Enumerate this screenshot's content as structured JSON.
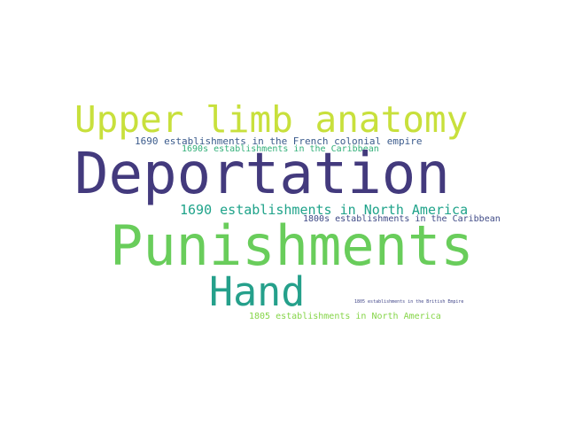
{
  "words": [
    {
      "text": "Upper limb anatomy",
      "color": "#c8e03c"
    },
    {
      "text": "1690 establishments in the French colonial empire",
      "color": "#3b5b8c"
    },
    {
      "text": "1690s establishments in the Caribbean",
      "color": "#33b07a"
    },
    {
      "text": "Deportation",
      "color": "#433a7d"
    },
    {
      "text": "1690 establishments in North America",
      "color": "#1fa38a"
    },
    {
      "text": "1800s establishments in the Caribbean",
      "color": "#3f4a86"
    },
    {
      "text": "Punishments",
      "color": "#69cd5b"
    },
    {
      "text": "Hand",
      "color": "#25a08b"
    },
    {
      "text": "1805 establishments in the British Empire",
      "color": "#404588"
    },
    {
      "text": "1805 establishments in North America",
      "color": "#86d549"
    }
  ]
}
